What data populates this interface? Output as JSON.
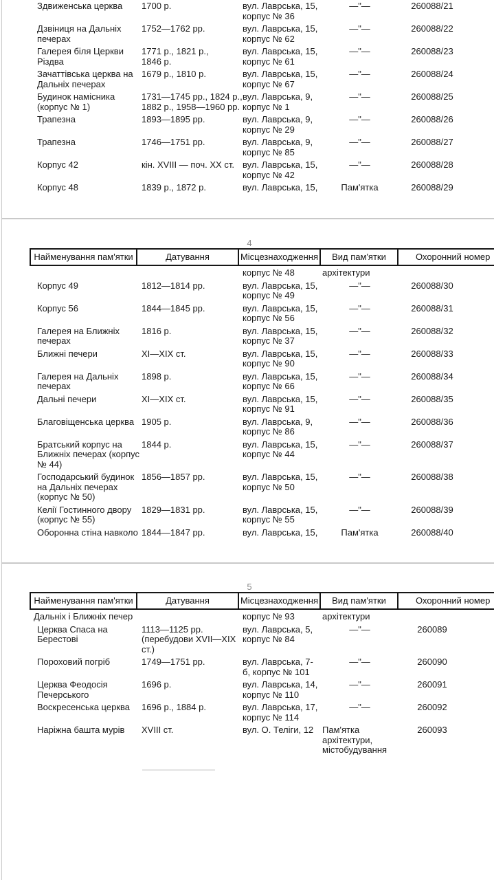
{
  "viewer": {
    "background": "#ffffff",
    "page_border_color": "#c9c9c9",
    "rule_color": "#161616",
    "page_number_color": "#8a8a8a"
  },
  "table": {
    "columns": [
      "Найменування пам'ятки",
      "Датування",
      "Місцезнаходження",
      "Вид пам'ятки",
      "Охоронний номер"
    ],
    "ditto_mark": "—\"—"
  },
  "pages": [
    {
      "id": "page-3",
      "number": "",
      "has_header": false,
      "rows": [
        {
          "name": [
            "Здвиженська церква"
          ],
          "date": [
            "1700 р."
          ],
          "loc": [
            "вул. Лаврська, 15,",
            "корпус № 36"
          ],
          "type": [
            "—\"—"
          ],
          "num": "260088/21"
        },
        {
          "name": [
            "Дзвіниця на Дальніх",
            "печерах"
          ],
          "date": [
            "1752—1762 рр."
          ],
          "loc": [
            "вул. Лаврська, 15,",
            "корпус № 62"
          ],
          "type": [
            "—\"—"
          ],
          "num": "260088/22"
        },
        {
          "name": [
            "Галерея біля Церкви",
            "Різдва"
          ],
          "date": [
            "1771 р., 1821 р.,",
            "1846 р."
          ],
          "loc": [
            "вул. Лаврська, 15,",
            "корпус № 61"
          ],
          "type": [
            "—\"—"
          ],
          "num": "260088/23"
        },
        {
          "name": [
            "Зачаттівська церква на",
            "Дальніх печерах"
          ],
          "date": [
            "1679 р., 1810 р."
          ],
          "loc": [
            "вул. Лаврська, 15,",
            "корпус № 67"
          ],
          "type": [
            "—\"—"
          ],
          "num": "260088/24"
        },
        {
          "name": [
            "Будинок намісника",
            "(корпус № 1)"
          ],
          "date": [
            "1731—1745 рр., 1824 р.,",
            "1882 р., 1958—1960 рр."
          ],
          "loc": [
            "вул. Лаврська, 9,",
            "корпус № 1"
          ],
          "type": [
            "—\"—"
          ],
          "num": "260088/25"
        },
        {
          "name": [
            "Трапезна"
          ],
          "date": [
            "1893—1895 рр."
          ],
          "loc": [
            "вул. Лаврська, 9,",
            "корпус № 29"
          ],
          "type": [
            "—\"—"
          ],
          "num": "260088/26"
        },
        {
          "name": [
            "Трапезна"
          ],
          "date": [
            "1746—1751 рр."
          ],
          "loc": [
            "вул. Лаврська, 9,",
            "корпус № 85"
          ],
          "type": [
            "—\"—"
          ],
          "num": "260088/27"
        },
        {
          "name": [
            "Корпус 42"
          ],
          "date": [
            "кін. XVIII — поч. XX ст."
          ],
          "loc": [
            "вул. Лаврська, 15,",
            "корпус № 42"
          ],
          "type": [
            "—\"—"
          ],
          "num": "260088/28"
        },
        {
          "name": [
            "Корпус 48"
          ],
          "date": [
            "1839 р., 1872 р."
          ],
          "loc": [
            "вул. Лаврська, 15,"
          ],
          "type": [
            "Пам'ятка"
          ],
          "num": "260088/29"
        }
      ]
    },
    {
      "id": "page-4",
      "number": "4",
      "has_header": true,
      "carry": {
        "name": [],
        "date": [],
        "loc": [
          "корпус № 48"
        ],
        "type": [
          "архітектури"
        ],
        "num": "",
        "type_align": "left"
      },
      "rows": [
        {
          "name": [
            "Корпус 49"
          ],
          "date": [
            "1812—1814 рр."
          ],
          "loc": [
            "вул. Лаврська, 15,",
            "корпус № 49"
          ],
          "type": [
            "—\"—"
          ],
          "num": "260088/30"
        },
        {
          "name": [
            "Корпус 56"
          ],
          "date": [
            "1844—1845 рр."
          ],
          "loc": [
            "вул. Лаврська, 15,",
            "корпус № 56"
          ],
          "type": [
            "—\"—"
          ],
          "num": "260088/31"
        },
        {
          "name": [
            "Галерея на Ближніх",
            "печерах"
          ],
          "date": [
            "1816 р."
          ],
          "loc": [
            "вул. Лаврська, 15,",
            "корпус № 37"
          ],
          "type": [
            "—\"—"
          ],
          "num": "260088/32"
        },
        {
          "name": [
            "Ближні печери"
          ],
          "date": [
            "XI—XIX ст."
          ],
          "loc": [
            "вул. Лаврська, 15,",
            "корпус № 90"
          ],
          "type": [
            "—\"—"
          ],
          "num": "260088/33"
        },
        {
          "name": [
            "Галерея на Дальніх",
            "печерах"
          ],
          "date": [
            "1898 р."
          ],
          "loc": [
            "вул. Лаврська, 15,",
            "корпус № 66"
          ],
          "type": [
            "—\"—"
          ],
          "num": "260088/34"
        },
        {
          "name": [
            "Дальні печери"
          ],
          "date": [
            "XI—XIX ст."
          ],
          "loc": [
            "вул. Лаврська, 15,",
            "корпус № 91"
          ],
          "type": [
            "—\"—"
          ],
          "num": "260088/35"
        },
        {
          "name": [
            "Благовіщенська церква"
          ],
          "date": [
            "1905 р."
          ],
          "loc": [
            "вул. Лаврська, 9,",
            "корпус № 86"
          ],
          "type": [
            "—\"—"
          ],
          "num": "260088/36"
        },
        {
          "name": [
            "Братський корпус на",
            "Ближніх печерах (корпус",
            "№ 44)"
          ],
          "date": [
            "1844 р."
          ],
          "loc": [
            "вул. Лаврська, 15,",
            "корпус № 44"
          ],
          "type": [
            "—\"—"
          ],
          "num": "260088/37"
        },
        {
          "name": [
            "Господарський будинок",
            "на Дальніх печерах",
            "(корпус № 50)"
          ],
          "date": [
            "1856—1857 рр."
          ],
          "loc": [
            "вул. Лаврська, 15,",
            "корпус № 50"
          ],
          "type": [
            "—\"—"
          ],
          "num": "260088/38"
        },
        {
          "name": [
            "Келії Гостинного двору",
            "(корпус № 55)"
          ],
          "date": [
            "1829—1831 рр."
          ],
          "loc": [
            "вул. Лаврська, 15,",
            "корпус № 55"
          ],
          "type": [
            "—\"—"
          ],
          "num": "260088/39"
        },
        {
          "name": [
            "Оборонна стіна навколо"
          ],
          "date": [
            "1844—1847 рр."
          ],
          "loc": [
            "вул. Лаврська, 15,"
          ],
          "type": [
            "Пам'ятка"
          ],
          "num": "260088/40"
        }
      ]
    },
    {
      "id": "page-5",
      "number": "5",
      "has_header": true,
      "footnote_rule": true,
      "carry": {
        "name": [
          "Дальніх і Ближніх печер"
        ],
        "date": [],
        "loc": [
          "корпус № 93"
        ],
        "type": [
          "архітектури"
        ],
        "num": "",
        "type_align": "left"
      },
      "rows": [
        {
          "name": [
            "Церква Спаса на",
            "Берестові"
          ],
          "date": [
            "1113—1125 рр.",
            "(перебудови XVII—XIX",
            "ст.)"
          ],
          "loc": [
            "вул. Лаврська, 5,",
            "корпус № 84"
          ],
          "type": [
            "—\"—"
          ],
          "num": "260089"
        },
        {
          "name": [
            "Пороховий погріб"
          ],
          "date": [
            "1749—1751 рр."
          ],
          "loc": [
            "вул. Лаврська, 7-",
            "б, корпус № 101"
          ],
          "type": [
            "—\"—"
          ],
          "num": "260090"
        },
        {
          "name": [
            "Церква Феодосія",
            "Печерського"
          ],
          "date": [
            "1696 р."
          ],
          "loc": [
            "вул. Лаврська, 14,",
            "корпус № 110"
          ],
          "type": [
            "—\"—"
          ],
          "num": "260091"
        },
        {
          "name": [
            "Воскресенська церква"
          ],
          "date": [
            "1696 р., 1884 р."
          ],
          "loc": [
            "вул. Лаврська, 17,",
            "корпус № 114"
          ],
          "type": [
            "—\"—"
          ],
          "num": "260092"
        },
        {
          "name": [
            "Наріжна башта мурів"
          ],
          "date": [
            "XVIII ст."
          ],
          "loc": [
            "вул. О. Теліги, 12"
          ],
          "type": [
            "Пам'ятка",
            "архітектури,",
            "містобудування"
          ],
          "num": "260093",
          "type_align": "left"
        }
      ]
    }
  ]
}
